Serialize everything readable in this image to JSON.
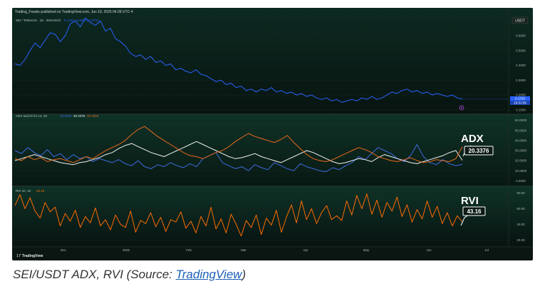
{
  "header": {
    "publish_line": "Trading_Freaks published on TradingView.com, Jun 18, 2025 04:28 UTC-4"
  },
  "price_panel": {
    "symbol_line": "SEI / TetherUS · 1D · BINANCE",
    "quote": "0.1720  -0.0058 (-3.37%)",
    "currency": "USDT",
    "last_price_label": "0.1720",
    "countdown_label": "19:31:59",
    "last_price_color": "#2962ff"
  },
  "adx_panel": {
    "indicator_line": "ADX and DI for 14, 20",
    "value_blue": "16.3780",
    "value_white": "20.3376",
    "value_orange": "33.7916",
    "big_label": "ADX",
    "callout_value": "20.3376"
  },
  "rvi_panel": {
    "indicator_line": "RVI 10, 10",
    "value": "43.16",
    "big_label": "RVI",
    "callout_value": "43.16"
  },
  "footer": {
    "brand": "TradingView"
  },
  "caption": {
    "text": "SEI/USDT ADX, RVI (Source: ",
    "link": "TradingView",
    "end": ")"
  },
  "colors": {
    "price": "#2962ff",
    "di_plus": "#3f6ae0",
    "adx": "#f0f0f0",
    "di_minus": "#e8691b",
    "rvi": "#ff6a00"
  },
  "chart_data": [
    {
      "type": "line",
      "title": "SEI / TetherUS · 1D · BINANCE",
      "x_labels": [
        "Dec",
        "2025",
        "Feb",
        "Mar",
        "Apr",
        "May",
        "Jun",
        "Jul"
      ],
      "y_ticks": [
        0.1,
        0.2,
        0.3,
        0.4,
        0.5,
        0.6
      ],
      "ylim": [
        0.08,
        0.74
      ],
      "series": [
        {
          "values": [
            0.41,
            0.4,
            0.44,
            0.5,
            0.55,
            0.52,
            0.57,
            0.62,
            0.61,
            0.56,
            0.6,
            0.68,
            0.7,
            0.66,
            0.72,
            0.69,
            0.67,
            0.7,
            0.63,
            0.65,
            0.58,
            0.56,
            0.53,
            0.48,
            0.46,
            0.47,
            0.44,
            0.46,
            0.42,
            0.43,
            0.4,
            0.41,
            0.37,
            0.38,
            0.36,
            0.35,
            0.37,
            0.34,
            0.33,
            0.31,
            0.29,
            0.3,
            0.27,
            0.28,
            0.25,
            0.26,
            0.23,
            0.24,
            0.22,
            0.24,
            0.23,
            0.25,
            0.22,
            0.23,
            0.21,
            0.22,
            0.2,
            0.21,
            0.19,
            0.2,
            0.18,
            0.17,
            0.18,
            0.16,
            0.17,
            0.15,
            0.16,
            0.17,
            0.16,
            0.18,
            0.17,
            0.19,
            0.17,
            0.18,
            0.2,
            0.22,
            0.21,
            0.23,
            0.24,
            0.22,
            0.23,
            0.21,
            0.22,
            0.2,
            0.21,
            0.2,
            0.19,
            0.2,
            0.18,
            0.172
          ]
        }
      ]
    },
    {
      "type": "line",
      "title": "ADX and DI for 14, 20",
      "y_ticks": [
        0,
        10,
        20,
        30,
        40,
        50,
        60
      ],
      "ylim": [
        -4,
        64
      ],
      "series": [
        {
          "name": "+DI",
          "values": [
            30,
            27,
            33,
            28,
            25,
            31,
            24,
            27,
            21,
            26,
            22,
            24,
            19,
            22,
            20,
            18,
            21,
            17,
            15,
            20,
            14,
            12,
            16,
            14,
            18,
            15,
            13,
            17,
            14,
            22,
            25,
            28,
            18,
            15,
            12,
            14,
            10,
            16,
            13,
            11,
            18,
            15,
            12,
            10,
            17,
            14,
            12,
            10,
            9,
            13,
            11,
            15,
            18,
            24,
            21,
            27,
            33,
            30,
            27,
            22,
            19,
            25,
            36,
            24,
            18,
            16,
            21,
            17,
            15,
            16.378
          ]
        },
        {
          "name": "ADX",
          "values": [
            20,
            22,
            24,
            26,
            24,
            22,
            20,
            18,
            17,
            16,
            18,
            19,
            21,
            23,
            26,
            28,
            32,
            35,
            37,
            34,
            31,
            28,
            26,
            24,
            27,
            30,
            33,
            36,
            39,
            36,
            33,
            30,
            27,
            24,
            22,
            23,
            25,
            27,
            24,
            22,
            20,
            18,
            21,
            24,
            27,
            30,
            28,
            25,
            22,
            19,
            17,
            18,
            20,
            22,
            21,
            19,
            23,
            26,
            24,
            22,
            20,
            18,
            17,
            19,
            21,
            23,
            25,
            28,
            30,
            20.3376
          ]
        },
        {
          "name": "-DI",
          "values": [
            22,
            20,
            24,
            21,
            23,
            19,
            21,
            22,
            20,
            18,
            21,
            24,
            22,
            26,
            30,
            33,
            36,
            40,
            46,
            51,
            54,
            49,
            44,
            40,
            36,
            32,
            28,
            25,
            24,
            22,
            25,
            28,
            30,
            34,
            39,
            43,
            47,
            44,
            42,
            40,
            38,
            41,
            45,
            38,
            32,
            26,
            22,
            20,
            19,
            21,
            24,
            27,
            30,
            33,
            31,
            28,
            24,
            22,
            20,
            19,
            21,
            23,
            20,
            18,
            19,
            21,
            20,
            19,
            22,
            33.7916
          ]
        }
      ]
    },
    {
      "type": "line",
      "title": "RVI 10, 10",
      "y_ticks": [
        20,
        40,
        60,
        80
      ],
      "ylim": [
        13,
        86
      ],
      "series": [
        {
          "values": [
            64,
            78,
            60,
            74,
            57,
            48,
            68,
            56,
            62,
            38,
            54,
            44,
            58,
            36,
            50,
            42,
            61,
            38,
            46,
            33,
            52,
            40,
            36,
            57,
            30,
            45,
            41,
            55,
            37,
            49,
            31,
            46,
            43,
            56,
            35,
            44,
            29,
            50,
            38,
            62,
            34,
            47,
            29,
            53,
            40,
            25,
            45,
            36,
            52,
            27,
            48,
            39,
            58,
            30,
            49,
            65,
            42,
            70,
            46,
            60,
            41,
            55,
            64,
            46,
            51,
            45,
            70,
            52,
            77,
            60,
            79,
            53,
            71,
            49,
            68,
            57,
            75,
            50,
            65,
            43,
            59,
            47,
            70,
            49,
            63,
            41,
            55,
            38,
            51,
            43.16
          ]
        }
      ]
    }
  ]
}
